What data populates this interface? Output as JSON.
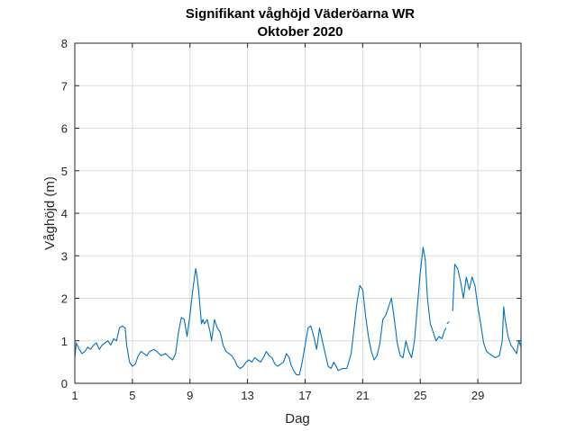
{
  "chart_data": {
    "type": "line",
    "title": "Signifikant våghöjd Väderöarna WR",
    "subtitle": "Oktober 2020",
    "xlabel": "Dag",
    "ylabel": "Våghöjd (m)",
    "xlim": [
      1,
      32
    ],
    "ylim": [
      0,
      8
    ],
    "xticks": [
      1,
      5,
      9,
      13,
      17,
      21,
      25,
      29
    ],
    "yticks": [
      0,
      1,
      2,
      3,
      4,
      5,
      6,
      7,
      8
    ],
    "grid": true,
    "series": [
      {
        "name": "Signifikant våghöjd",
        "color": "#0072bd",
        "segments": [
          [
            [
              1.0,
              0.6
            ],
            [
              1.1,
              0.95
            ],
            [
              1.3,
              0.8
            ],
            [
              1.5,
              0.7
            ],
            [
              1.7,
              0.75
            ],
            [
              1.9,
              0.85
            ],
            [
              2.1,
              0.8
            ],
            [
              2.3,
              0.9
            ],
            [
              2.5,
              0.95
            ],
            [
              2.7,
              0.8
            ],
            [
              2.9,
              0.9
            ],
            [
              3.1,
              0.95
            ],
            [
              3.3,
              1.0
            ],
            [
              3.5,
              0.9
            ],
            [
              3.7,
              1.05
            ],
            [
              3.9,
              1.0
            ],
            [
              4.1,
              1.3
            ],
            [
              4.3,
              1.35
            ],
            [
              4.5,
              1.3
            ],
            [
              4.6,
              0.9
            ],
            [
              4.8,
              0.5
            ],
            [
              5.0,
              0.4
            ],
            [
              5.2,
              0.45
            ],
            [
              5.4,
              0.65
            ],
            [
              5.6,
              0.75
            ],
            [
              5.8,
              0.7
            ],
            [
              6.0,
              0.65
            ],
            [
              6.2,
              0.75
            ],
            [
              6.5,
              0.8
            ],
            [
              6.7,
              0.75
            ],
            [
              7.0,
              0.65
            ],
            [
              7.3,
              0.7
            ],
            [
              7.6,
              0.6
            ],
            [
              7.8,
              0.55
            ],
            [
              8.0,
              0.7
            ],
            [
              8.2,
              1.2
            ],
            [
              8.4,
              1.55
            ],
            [
              8.6,
              1.5
            ],
            [
              8.8,
              1.1
            ],
            [
              9.0,
              1.6
            ],
            [
              9.2,
              2.2
            ],
            [
              9.4,
              2.7
            ],
            [
              9.5,
              2.5
            ],
            [
              9.6,
              2.2
            ],
            [
              9.7,
              1.8
            ],
            [
              9.8,
              1.4
            ],
            [
              9.9,
              1.5
            ],
            [
              10.0,
              1.4
            ],
            [
              10.2,
              1.5
            ],
            [
              10.4,
              1.2
            ],
            [
              10.5,
              1.0
            ],
            [
              10.7,
              1.5
            ],
            [
              10.9,
              1.3
            ],
            [
              11.1,
              1.2
            ],
            [
              11.3,
              0.9
            ],
            [
              11.5,
              0.75
            ],
            [
              11.7,
              0.7
            ],
            [
              11.9,
              0.65
            ],
            [
              12.1,
              0.55
            ],
            [
              12.3,
              0.4
            ],
            [
              12.5,
              0.35
            ],
            [
              12.7,
              0.4
            ],
            [
              12.9,
              0.5
            ],
            [
              13.1,
              0.55
            ],
            [
              13.3,
              0.5
            ],
            [
              13.5,
              0.6
            ],
            [
              13.7,
              0.55
            ],
            [
              13.9,
              0.5
            ],
            [
              14.1,
              0.6
            ],
            [
              14.3,
              0.75
            ],
            [
              14.5,
              0.65
            ],
            [
              14.7,
              0.6
            ],
            [
              14.9,
              0.45
            ],
            [
              15.1,
              0.4
            ],
            [
              15.3,
              0.45
            ],
            [
              15.5,
              0.5
            ],
            [
              15.7,
              0.7
            ],
            [
              15.9,
              0.6
            ],
            [
              16.0,
              0.45
            ],
            [
              16.2,
              0.3
            ],
            [
              16.4,
              0.2
            ],
            [
              16.6,
              0.2
            ],
            [
              16.8,
              0.5
            ],
            [
              17.0,
              0.9
            ],
            [
              17.2,
              1.3
            ],
            [
              17.4,
              1.35
            ],
            [
              17.6,
              1.1
            ],
            [
              17.8,
              0.8
            ],
            [
              18.0,
              1.3
            ],
            [
              18.2,
              1.0
            ],
            [
              18.4,
              0.7
            ],
            [
              18.6,
              0.4
            ],
            [
              18.8,
              0.35
            ],
            [
              19.0,
              0.5
            ],
            [
              19.3,
              0.3
            ],
            [
              19.6,
              0.35
            ],
            [
              19.9,
              0.35
            ],
            [
              20.2,
              0.7
            ],
            [
              20.4,
              1.3
            ],
            [
              20.6,
              1.9
            ],
            [
              20.8,
              2.3
            ],
            [
              21.0,
              2.2
            ],
            [
              21.2,
              1.6
            ],
            [
              21.4,
              1.1
            ],
            [
              21.6,
              0.75
            ],
            [
              21.8,
              0.55
            ],
            [
              22.0,
              0.65
            ],
            [
              22.2,
              0.95
            ],
            [
              22.4,
              1.5
            ],
            [
              22.6,
              1.6
            ],
            [
              22.8,
              1.8
            ],
            [
              23.0,
              2.0
            ],
            [
              23.2,
              1.5
            ],
            [
              23.4,
              0.95
            ],
            [
              23.6,
              0.65
            ],
            [
              23.8,
              0.6
            ],
            [
              24.0,
              1.0
            ],
            [
              24.2,
              0.75
            ],
            [
              24.4,
              0.6
            ],
            [
              24.6,
              1.0
            ],
            [
              24.8,
              1.8
            ],
            [
              25.0,
              2.6
            ],
            [
              25.2,
              3.2
            ],
            [
              25.35,
              2.9
            ],
            [
              25.5,
              2.0
            ],
            [
              25.7,
              1.4
            ],
            [
              25.9,
              1.2
            ],
            [
              26.1,
              1.0
            ],
            [
              26.3,
              1.1
            ],
            [
              26.5,
              1.05
            ],
            [
              26.7,
              1.25
            ],
            [
              26.8,
              1.3
            ]
          ],
          [
            [
              26.85,
              1.4
            ],
            [
              27.0,
              1.45
            ]
          ],
          [
            [
              27.25,
              1.7
            ],
            [
              27.4,
              2.8
            ],
            [
              27.6,
              2.7
            ],
            [
              27.8,
              2.4
            ],
            [
              28.0,
              2.0
            ],
            [
              28.2,
              2.5
            ],
            [
              28.4,
              2.2
            ],
            [
              28.6,
              2.5
            ],
            [
              28.8,
              2.3
            ],
            [
              29.0,
              1.8
            ],
            [
              29.2,
              1.4
            ],
            [
              29.4,
              0.95
            ],
            [
              29.6,
              0.75
            ],
            [
              29.8,
              0.7
            ],
            [
              30.0,
              0.65
            ],
            [
              30.2,
              0.6
            ],
            [
              30.5,
              0.65
            ],
            [
              30.7,
              1.0
            ],
            [
              30.8,
              1.8
            ],
            [
              30.9,
              1.5
            ],
            [
              31.1,
              1.1
            ],
            [
              31.3,
              0.9
            ],
            [
              31.5,
              0.8
            ],
            [
              31.7,
              0.7
            ],
            [
              31.85,
              1.0
            ],
            [
              32.0,
              0.85
            ]
          ]
        ]
      }
    ]
  }
}
